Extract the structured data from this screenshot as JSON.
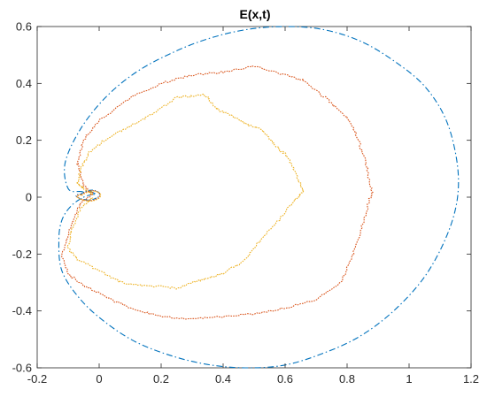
{
  "chart_data": {
    "type": "line",
    "title": "E(x,t)",
    "xlabel": "",
    "ylabel": "",
    "xlim": [
      -0.2,
      1.2
    ],
    "ylim": [
      -0.6,
      0.6
    ],
    "x_ticks": [
      -0.2,
      0,
      0.2,
      0.4,
      0.6,
      0.8,
      1,
      1.2
    ],
    "y_ticks": [
      -0.6,
      -0.4,
      -0.2,
      0,
      0.2,
      0.4,
      0.6
    ],
    "x_tick_labels": [
      "-0.2",
      "0",
      "0.2",
      "0.4",
      "0.6",
      "0.8",
      "1",
      "1.2"
    ],
    "y_tick_labels": [
      "-0.6",
      "-0.4",
      "-0.2",
      "0",
      "0.2",
      "0.4",
      "0.6"
    ],
    "grid": false,
    "series": [
      {
        "color": "#0072BD",
        "style": "dash-dot",
        "x": [
          -0.02,
          -0.05,
          -0.09,
          -0.12,
          -0.13,
          -0.12,
          -0.06,
          0.02,
          0.12,
          0.24,
          0.36,
          0.48,
          0.6,
          0.72,
          0.84,
          0.95,
          1.05,
          1.12,
          1.155,
          1.155,
          1.12,
          1.05,
          0.95,
          0.84,
          0.72,
          0.6,
          0.48,
          0.36,
          0.24,
          0.12,
          0.02,
          -0.06,
          -0.11,
          -0.1,
          -0.06,
          -0.03,
          -0.01,
          -0.02
        ],
        "y": [
          0.01,
          0.0,
          -0.03,
          -0.08,
          -0.15,
          -0.26,
          -0.36,
          -0.44,
          -0.51,
          -0.56,
          -0.59,
          -0.6,
          -0.59,
          -0.55,
          -0.49,
          -0.4,
          -0.28,
          -0.14,
          -0.01,
          0.12,
          0.27,
          0.39,
          0.48,
          0.55,
          0.59,
          0.6,
          0.59,
          0.56,
          0.51,
          0.44,
          0.35,
          0.24,
          0.12,
          0.03,
          0.02,
          0.02,
          0.01,
          0.01
        ]
      },
      {
        "color": "#D95319",
        "style": "dotted",
        "x": [
          -0.02,
          -0.06,
          -0.09,
          -0.12,
          -0.1,
          -0.05,
          0.02,
          0.1,
          0.2,
          0.3,
          0.4,
          0.5,
          0.6,
          0.7,
          0.78,
          0.82,
          0.86,
          0.88,
          0.86,
          0.83,
          0.8,
          0.74,
          0.66,
          0.6,
          0.5,
          0.4,
          0.3,
          0.2,
          0.1,
          0.0,
          -0.05,
          -0.07,
          -0.05,
          -0.02
        ],
        "y": [
          0.01,
          -0.02,
          -0.1,
          -0.2,
          -0.27,
          -0.31,
          -0.35,
          -0.39,
          -0.42,
          -0.43,
          -0.42,
          -0.41,
          -0.39,
          -0.36,
          -0.3,
          -0.2,
          -0.06,
          0.02,
          0.12,
          0.22,
          0.28,
          0.34,
          0.41,
          0.43,
          0.46,
          0.44,
          0.43,
          0.4,
          0.35,
          0.27,
          0.2,
          0.12,
          0.04,
          0.01
        ]
      },
      {
        "color": "#EDB120",
        "style": "dotted",
        "x": [
          -0.02,
          -0.06,
          -0.09,
          -0.1,
          -0.07,
          0.0,
          0.07,
          0.15,
          0.25,
          0.33,
          0.4,
          0.47,
          0.52,
          0.58,
          0.63,
          0.66,
          0.64,
          0.61,
          0.57,
          0.52,
          0.47,
          0.42,
          0.38,
          0.34,
          0.25,
          0.17,
          0.1,
          0.03,
          -0.03,
          -0.06,
          -0.07,
          -0.05,
          -0.02
        ],
        "y": [
          0.0,
          -0.04,
          -0.12,
          -0.18,
          -0.22,
          -0.26,
          -0.3,
          -0.31,
          -0.32,
          -0.29,
          -0.27,
          -0.22,
          -0.15,
          -0.08,
          -0.01,
          0.02,
          0.07,
          0.14,
          0.18,
          0.24,
          0.26,
          0.29,
          0.31,
          0.36,
          0.35,
          0.29,
          0.25,
          0.21,
          0.16,
          0.1,
          0.05,
          0.03,
          0.01
        ]
      }
    ],
    "loop_small": {
      "x": [
        -0.06,
        -0.045,
        -0.02,
        0.0,
        -0.005,
        -0.03,
        -0.06,
        -0.075,
        -0.065
      ],
      "y": [
        0.01,
        0.02,
        0.025,
        0.015,
        0.0,
        -0.01,
        -0.005,
        0.005,
        0.012
      ]
    }
  }
}
